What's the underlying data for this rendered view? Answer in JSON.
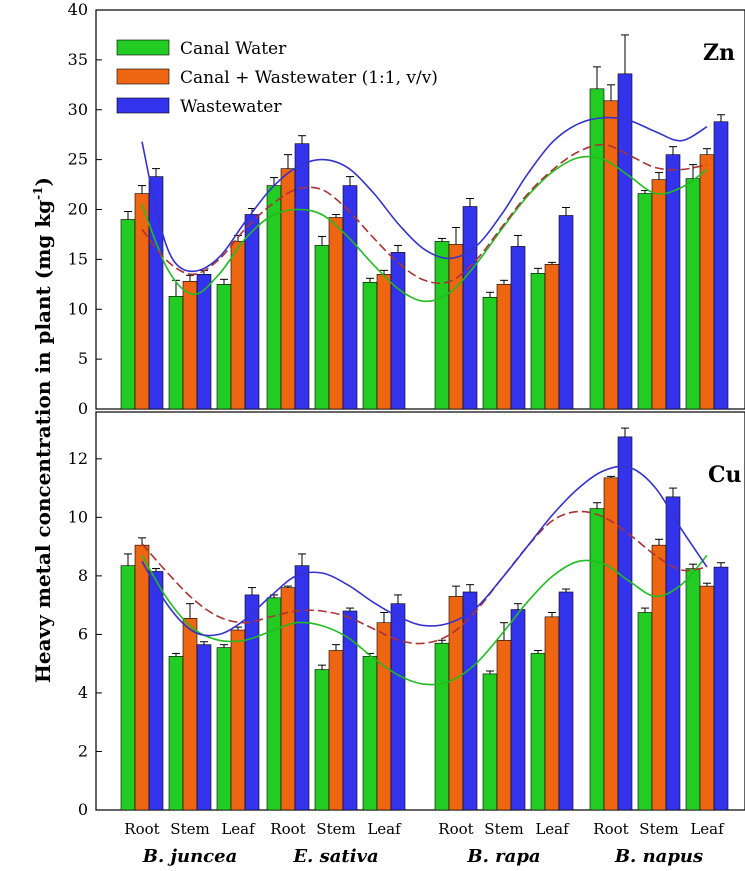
{
  "chart_data": {
    "type": "bar",
    "ylabel_main": "Heavy metal concentration in plant (mg kg",
    "ylabel_sup": "-1",
    "ylabel_end": ")",
    "categories": [
      "Root",
      "Stem",
      "Leaf",
      "Root",
      "Stem",
      "Leaf",
      "Root",
      "Stem",
      "Leaf",
      "Root",
      "Stem",
      "Leaf"
    ],
    "groups": [
      "B. juncea",
      "E. sativa",
      "B. rapa",
      "B. napus"
    ],
    "legend": [
      "Canal Water",
      "Canal + Wastewater (1:1, v/v)",
      "Wastewater"
    ],
    "colors": {
      "canal": "#22cc22",
      "mix": "#ee6611",
      "waste": "#3333ee",
      "fit_canal": "#22bb22",
      "fit_mix": "#aa3333",
      "fit_waste": "#3333cc"
    },
    "panels": [
      {
        "label": "Zn",
        "ylim": [
          0,
          40
        ],
        "yticks": [
          "0",
          "5",
          "10",
          "15",
          "20",
          "25",
          "30",
          "35",
          "40"
        ],
        "series": [
          {
            "values": [
              19.0,
              11.3,
              12.5,
              22.4,
              16.4,
              12.7,
              16.8,
              11.2,
              13.6,
              32.1,
              21.6,
              23.1
            ],
            "errors": [
              0.8,
              1.6,
              0.5,
              0.8,
              0.9,
              0.4,
              0.3,
              0.5,
              0.5,
              2.2,
              0.3,
              1.4
            ]
          },
          {
            "values": [
              21.6,
              12.8,
              16.8,
              24.1,
              19.2,
              13.5,
              16.5,
              12.5,
              14.5,
              30.9,
              23.0,
              25.5
            ],
            "errors": [
              0.8,
              0.6,
              0.6,
              1.4,
              0.3,
              0.4,
              1.7,
              0.4,
              0.2,
              1.6,
              0.7,
              0.6
            ]
          },
          {
            "values": [
              23.3,
              13.5,
              19.5,
              26.6,
              22.4,
              15.7,
              20.3,
              16.3,
              19.4,
              33.6,
              25.5,
              28.8
            ],
            "errors": [
              0.8,
              0.4,
              0.6,
              0.8,
              0.9,
              0.7,
              0.8,
              1.1,
              0.8,
              3.9,
              0.8,
              0.7
            ]
          }
        ],
        "fits": [
          {
            "x": [
              0,
              0.5,
              1,
              1.5,
              2,
              2.5,
              3,
              3.5,
              4,
              4.5,
              5,
              5.5,
              6,
              6.5,
              7,
              7.5,
              8,
              8.5,
              9,
              9.5,
              10,
              10.5,
              11
            ],
            "y": [
              20.5,
              14.0,
              11.5,
              13.5,
              17.0,
              19.3,
              20.0,
              19.5,
              17.3,
              14.5,
              12.0,
              10.8,
              11.7,
              14.5,
              18.0,
              21.3,
              23.8,
              25.2,
              25.0,
              23.3,
              21.6,
              22.2,
              24.0
            ]
          },
          {
            "x": [
              0,
              0.5,
              1,
              1.5,
              2,
              2.5,
              3,
              3.5,
              4,
              4.5,
              5,
              5.5,
              6,
              6.5,
              7,
              7.5,
              8,
              8.5,
              9,
              9.5,
              10,
              10.5,
              11
            ],
            "y": [
              18.0,
              14.8,
              13.5,
              15.0,
              18.0,
              20.4,
              22.0,
              22.0,
              20.0,
              17.2,
              14.6,
              12.9,
              12.8,
              14.9,
              18.2,
              21.5,
              24.0,
              25.8,
              26.5,
              25.4,
              24.2,
              24.0,
              24.5
            ]
          },
          {
            "x": [
              0,
              0.3,
              0.6,
              1,
              1.5,
              2,
              2.5,
              3,
              3.5,
              4,
              4.5,
              5,
              5.5,
              6,
              6.5,
              7,
              7.5,
              8,
              8.5,
              9,
              9.5,
              10,
              10.5,
              11
            ],
            "y": [
              26.8,
              19.5,
              15.0,
              13.8,
              15.2,
              18.7,
              22.0,
              24.2,
              25.0,
              24.2,
              21.7,
              18.5,
              16.0,
              15.1,
              16.3,
              19.5,
              23.5,
              26.8,
              28.6,
              29.2,
              28.9,
              27.8,
              26.9,
              28.3
            ]
          }
        ]
      },
      {
        "label": "Cu",
        "ylim": [
          0,
          13.6
        ],
        "yticks": [
          "0",
          "2",
          "4",
          "6",
          "8",
          "10",
          "12"
        ],
        "series": [
          {
            "values": [
              8.35,
              5.25,
              5.55,
              7.25,
              4.8,
              5.25,
              5.7,
              4.65,
              5.35,
              10.3,
              6.75,
              8.25
            ],
            "errors": [
              0.4,
              0.1,
              0.1,
              0.1,
              0.15,
              0.1,
              0.1,
              0.1,
              0.1,
              0.2,
              0.15,
              0.15
            ]
          },
          {
            "values": [
              9.05,
              6.55,
              6.15,
              7.6,
              5.45,
              6.4,
              7.3,
              5.8,
              6.6,
              11.35,
              9.05,
              7.65
            ],
            "errors": [
              0.25,
              0.5,
              0.1,
              0.05,
              0.2,
              0.35,
              0.35,
              0.6,
              0.15,
              0.05,
              0.2,
              0.1
            ]
          },
          {
            "values": [
              8.15,
              5.65,
              7.35,
              8.35,
              6.8,
              7.05,
              7.45,
              6.85,
              7.45,
              12.75,
              10.7,
              8.3
            ],
            "errors": [
              0.1,
              0.1,
              0.25,
              0.4,
              0.1,
              0.3,
              0.25,
              0.2,
              0.1,
              0.3,
              0.3,
              0.15
            ]
          }
        ],
        "fits": [
          {
            "x": [
              0,
              0.5,
              1,
              1.5,
              2,
              2.5,
              3,
              3.5,
              4,
              4.5,
              5,
              5.5,
              6,
              6.5,
              7,
              7.5,
              8,
              8.5,
              9,
              9.5,
              10,
              10.5,
              11
            ],
            "y": [
              8.7,
              7.2,
              6.2,
              5.8,
              5.8,
              6.1,
              6.4,
              6.3,
              5.9,
              5.2,
              4.6,
              4.3,
              4.4,
              5.0,
              6.0,
              7.1,
              8.0,
              8.5,
              8.4,
              7.8,
              7.3,
              7.7,
              8.7
            ]
          },
          {
            "x": [
              0,
              0.5,
              1,
              1.5,
              2,
              2.5,
              3,
              3.5,
              4,
              4.5,
              5,
              5.5,
              6,
              6.5,
              7,
              7.5,
              8,
              8.5,
              9,
              9.5,
              10,
              10.5,
              11
            ],
            "y": [
              9.1,
              8.1,
              7.2,
              6.6,
              6.4,
              6.6,
              6.8,
              6.8,
              6.6,
              6.2,
              5.8,
              5.7,
              6.0,
              6.8,
              7.9,
              9.0,
              9.9,
              10.2,
              10.0,
              9.4,
              8.7,
              8.2,
              8.3
            ]
          },
          {
            "x": [
              0,
              0.5,
              1,
              1.5,
              2,
              2.5,
              3,
              3.5,
              4,
              4.5,
              5,
              5.5,
              6,
              6.5,
              7,
              7.5,
              8,
              8.5,
              9,
              9.5,
              10,
              10.5,
              11
            ],
            "y": [
              8.5,
              7.0,
              6.1,
              6.0,
              6.5,
              7.3,
              8.0,
              8.1,
              7.7,
              7.1,
              6.6,
              6.3,
              6.4,
              6.9,
              7.9,
              9.0,
              10.1,
              11.0,
              11.6,
              11.7,
              11.0,
              9.6,
              8.3
            ]
          }
        ]
      }
    ]
  }
}
